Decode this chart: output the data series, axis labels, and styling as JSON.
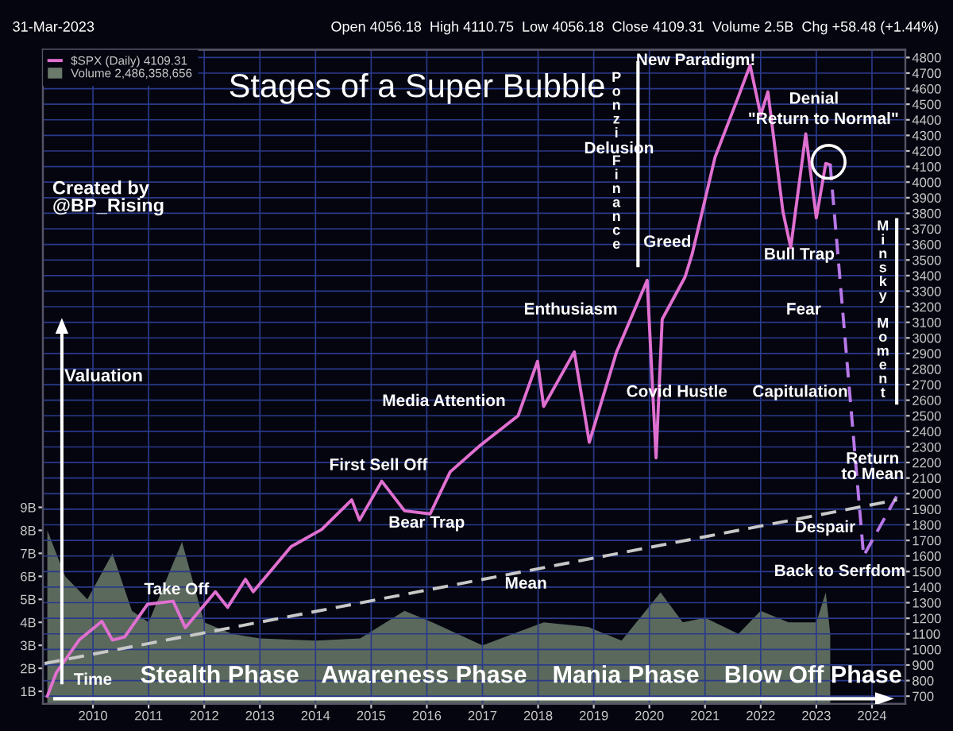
{
  "chart_data": {
    "type": "line",
    "title": "Stages of a Super Bubble",
    "x": [
      2009.18,
      2009.34,
      2009.75,
      2010.16,
      2010.35,
      2010.57,
      2010.98,
      2011.44,
      2011.66,
      2012.2,
      2012.42,
      2012.74,
      2012.88,
      2013.56,
      2014.11,
      2014.65,
      2014.79,
      2015.19,
      2015.6,
      2016.06,
      2016.42,
      2016.96,
      2017.64,
      2017.99,
      2018.1,
      2018.65,
      2018.92,
      2019.41,
      2019.96,
      2020.12,
      2020.23,
      2020.64,
      2020.77,
      2021.18,
      2021.59,
      2021.81,
      2022.0,
      2022.13,
      2022.4,
      2022.54,
      2022.81,
      2023.0,
      2023.17,
      2023.25
    ],
    "series": [
      {
        "name": "$SPX (Daily) 4109.31",
        "color": "#e070d0",
        "line_style": "solid",
        "values": [
          700,
          850,
          1060,
          1180,
          1060,
          1080,
          1290,
          1310,
          1140,
          1370,
          1270,
          1450,
          1370,
          1660,
          1770,
          1960,
          1830,
          2080,
          1890,
          1870,
          2140,
          2310,
          2500,
          2850,
          2560,
          2910,
          2330,
          2910,
          3370,
          2230,
          3120,
          3390,
          3540,
          4160,
          4540,
          4750,
          4430,
          4580,
          3810,
          3580,
          4310,
          3770,
          4120,
          4110
        ]
      },
      {
        "color": "#b878e8",
        "line_style": "dashed",
        "x": [
          2023.25,
          2023.85,
          2024.47
        ],
        "values": [
          4110,
          1600,
          2000
        ]
      },
      {
        "color": "#c8c8c8",
        "line_style": "dashed",
        "x": [
          2009.13,
          2024.45
        ],
        "values": [
          910,
          1960
        ]
      },
      {
        "name": "Volume 2,486,358,656",
        "type": "area",
        "axis": "y2",
        "color": "#6b7b6b",
        "x": [
          2009.18,
          2009.5,
          2009.9,
          2010.35,
          2010.7,
          2011.0,
          2011.6,
          2012.0,
          2012.5,
          2013.0,
          2014.0,
          2014.8,
          2015.6,
          2016.1,
          2017.0,
          2018.1,
          2018.9,
          2019.5,
          2020.2,
          2020.6,
          2021.0,
          2021.6,
          2022.0,
          2022.5,
          2023.0,
          2023.17,
          2023.25
        ],
        "values": [
          8,
          6,
          5,
          7,
          4.5,
          4,
          7.5,
          4,
          3.5,
          3.3,
          3.2,
          3.3,
          4.5,
          4,
          3,
          4,
          3.8,
          3.2,
          5.3,
          4,
          4.2,
          3.5,
          4.5,
          4,
          4,
          5.3,
          3.5
        ]
      }
    ],
    "xlim": [
      2009.1,
      2024.6
    ],
    "xticks": [
      2010,
      2011,
      2012,
      2013,
      2014,
      2015,
      2016,
      2017,
      2018,
      2019,
      2020,
      2021,
      2022,
      2023,
      2024
    ],
    "ylim": [
      650,
      4850
    ],
    "yticks": [
      700,
      800,
      900,
      1000,
      1100,
      1200,
      1300,
      1400,
      1500,
      1600,
      1700,
      1800,
      1900,
      2000,
      2100,
      2200,
      2300,
      2400,
      2500,
      2600,
      2700,
      2800,
      2900,
      3000,
      3100,
      3200,
      3300,
      3400,
      3500,
      3600,
      3700,
      3800,
      3900,
      4000,
      4100,
      4200,
      4300,
      4400,
      4500,
      4600,
      4700,
      4800
    ],
    "y2lim": [
      0.45,
      28.9
    ],
    "y2ticks": [
      {
        "value": 1,
        "label": "1B"
      },
      {
        "value": 2,
        "label": "2B"
      },
      {
        "value": 3,
        "label": "3B"
      },
      {
        "value": 4,
        "label": "4B"
      },
      {
        "value": 5,
        "label": "5B"
      },
      {
        "value": 6,
        "label": "6B"
      },
      {
        "value": 7,
        "label": "7B"
      },
      {
        "value": 8,
        "label": "8B"
      },
      {
        "value": 9,
        "label": "9B"
      }
    ],
    "grid": true,
    "legend": "top left",
    "annotations": [
      "Created by\n@BP_Rising",
      "Valuation",
      "Time",
      "Stealth Phase",
      "Awareness Phase",
      "Mania Phase",
      "Blow Off Phase",
      "31-Mar-2023",
      "Open 4056.18  High 4110.75  Low 4056.18  Close 4109.31  Volume 2.5B  Chg +58.48 (+1.44%)",
      "Ponzi Finance",
      "Minsky Moment",
      "Take Off",
      "First Sell Off",
      "Bear Trap",
      "Media Attention",
      "Mean",
      "Enthusiasm",
      "Covid Hustle",
      "Greed",
      "Delusion",
      "New Paradigm!",
      "Denial",
      "\"Return to Normal\"",
      "Bull Trap",
      "Fear",
      "Capitulation",
      "Return\nto Mean",
      "Despair",
      "Back to Serfdom"
    ]
  }
}
